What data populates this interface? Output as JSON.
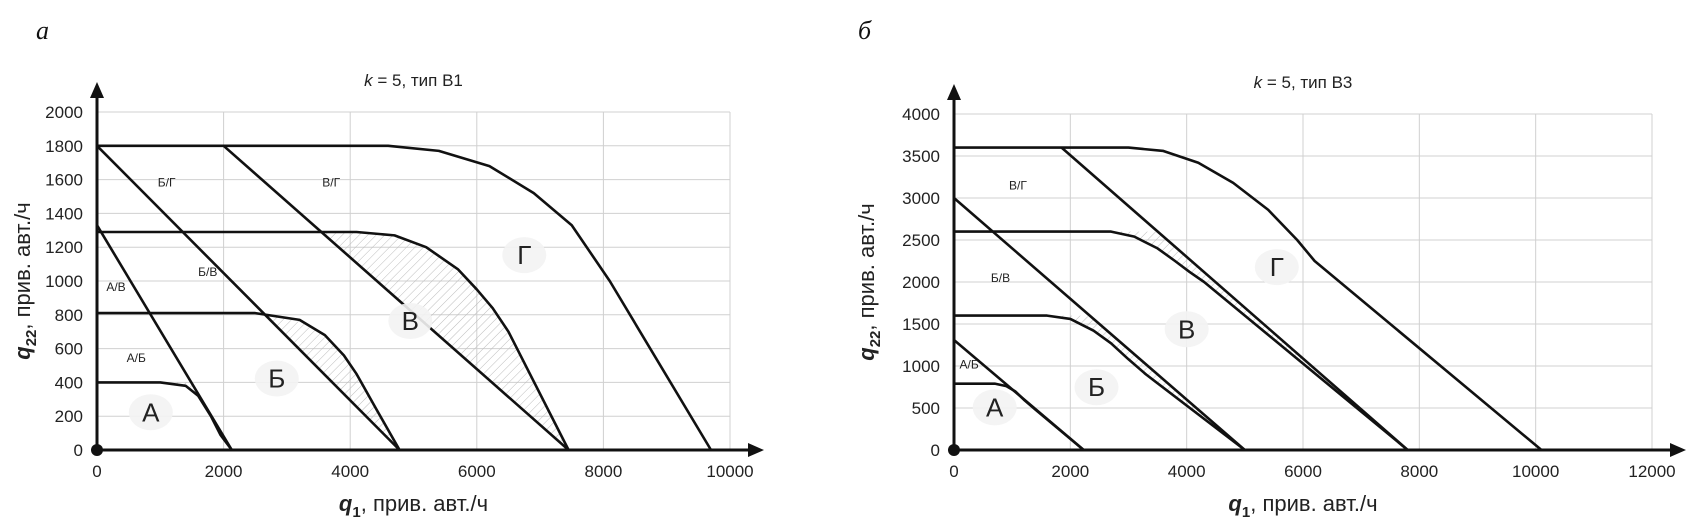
{
  "panel_labels": [
    "а",
    "б"
  ],
  "chart_data": [
    {
      "type": "line",
      "title_prefix": "k",
      "title_rest": " = 5, тип В1",
      "xlabel_main": "q",
      "xlabel_sub": "1",
      "xlabel_rest": ", прив. авт./ч",
      "ylabel_main": "q",
      "ylabel_sub": "22",
      "ylabel_rest": ", прив. авт./ч",
      "xlim": [
        0,
        10000
      ],
      "ylim": [
        0,
        2000
      ],
      "xticks": [
        "0",
        "2000",
        "4000",
        "6000",
        "8000",
        "10000"
      ],
      "yticks": [
        "0",
        "200",
        "400",
        "600",
        "800",
        "1000",
        "1200",
        "1400",
        "1600",
        "1800",
        "2000"
      ],
      "grid": true,
      "series": [
        {
          "x": [
            0,
            2130
          ],
          "y": [
            1330,
            0
          ]
        },
        {
          "x": [
            0,
            4780
          ],
          "y": [
            1800,
            0
          ]
        },
        {
          "x": [
            2000,
            7450
          ],
          "y": [
            1800,
            0
          ]
        },
        {
          "x": [
            0,
            1000,
            1400,
            1600,
            1800,
            1950,
            2130
          ],
          "y": [
            400,
            400,
            380,
            320,
            200,
            90,
            0
          ]
        },
        {
          "x": [
            0,
            2500,
            3200,
            3600,
            3900,
            4100,
            4400,
            4780
          ],
          "y": [
            810,
            810,
            770,
            680,
            560,
            450,
            250,
            0
          ]
        },
        {
          "x": [
            0,
            4100,
            4700,
            5200,
            5700,
            6000,
            6250,
            6500,
            7450
          ],
          "y": [
            1290,
            1290,
            1270,
            1200,
            1070,
            950,
            840,
            700,
            0
          ]
        },
        {
          "x": [
            0,
            4600,
            5400,
            6200,
            6900,
            7500,
            8100,
            8500,
            9700
          ],
          "y": [
            1800,
            1800,
            1770,
            1680,
            1520,
            1330,
            1000,
            750,
            0
          ]
        }
      ],
      "region_labels": [
        {
          "text": "А",
          "x": 850,
          "y": 170,
          "size": "big"
        },
        {
          "text": "Б",
          "x": 2840,
          "y": 370,
          "size": "big"
        },
        {
          "text": "В",
          "x": 4950,
          "y": 710,
          "size": "big"
        },
        {
          "text": "Г",
          "x": 6750,
          "y": 1100,
          "size": "big"
        },
        {
          "text": "А/Б",
          "x": 620,
          "y": 520,
          "size": "small"
        },
        {
          "text": "А/В",
          "x": 300,
          "y": 940,
          "size": "small"
        },
        {
          "text": "Б/В",
          "x": 1750,
          "y": 1030,
          "size": "small"
        },
        {
          "text": "Б/Г",
          "x": 1100,
          "y": 1560,
          "size": "small"
        },
        {
          "text": "В/Г",
          "x": 3700,
          "y": 1560,
          "size": "small"
        }
      ]
    },
    {
      "type": "line",
      "title_prefix": "k",
      "title_rest": " = 5, тип В3",
      "xlabel_main": "q",
      "xlabel_sub": "1",
      "xlabel_rest": ", прив. авт./ч",
      "ylabel_main": "q",
      "ylabel_sub": "22",
      "ylabel_rest": ", прив. авт./ч",
      "xlim": [
        0,
        12000
      ],
      "ylim": [
        0,
        4000
      ],
      "xticks": [
        "0",
        "2000",
        "4000",
        "6000",
        "8000",
        "10000",
        "12000"
      ],
      "yticks": [
        "0",
        "500",
        "1000",
        "1500",
        "2000",
        "2500",
        "3000",
        "3500",
        "4000"
      ],
      "grid": true,
      "series": [
        {
          "x": [
            0,
            2230
          ],
          "y": [
            1310,
            0
          ]
        },
        {
          "x": [
            0,
            5000
          ],
          "y": [
            3000,
            0
          ]
        },
        {
          "x": [
            1850,
            7800
          ],
          "y": [
            3600,
            0
          ]
        },
        {
          "x": [
            0,
            700,
            900,
            1050,
            1200,
            1400,
            2230
          ],
          "y": [
            790,
            790,
            760,
            700,
            600,
            480,
            0
          ]
        },
        {
          "x": [
            0,
            1600,
            2000,
            2400,
            2700,
            3000,
            3300,
            5000
          ],
          "y": [
            1600,
            1600,
            1560,
            1420,
            1270,
            1080,
            900,
            0
          ]
        },
        {
          "x": [
            0,
            2700,
            3100,
            3500,
            3800,
            4050,
            4300,
            7800
          ],
          "y": [
            2600,
            2600,
            2540,
            2400,
            2250,
            2120,
            2000,
            0
          ]
        },
        {
          "x": [
            0,
            3000,
            3600,
            4200,
            4800,
            5400,
            5900,
            6200,
            10100
          ],
          "y": [
            3600,
            3600,
            3560,
            3420,
            3180,
            2860,
            2500,
            2250,
            0
          ]
        }
      ],
      "region_labels": [
        {
          "text": "А",
          "x": 700,
          "y": 400,
          "size": "big"
        },
        {
          "text": "Б",
          "x": 2450,
          "y": 640,
          "size": "big"
        },
        {
          "text": "В",
          "x": 4000,
          "y": 1330,
          "size": "big"
        },
        {
          "text": "Г",
          "x": 5550,
          "y": 2070,
          "size": "big"
        },
        {
          "text": "А/Б",
          "x": 260,
          "y": 970,
          "size": "small"
        },
        {
          "text": "Б/В",
          "x": 800,
          "y": 2000,
          "size": "small"
        },
        {
          "text": "В/Г",
          "x": 1100,
          "y": 3100,
          "size": "small"
        }
      ]
    }
  ]
}
